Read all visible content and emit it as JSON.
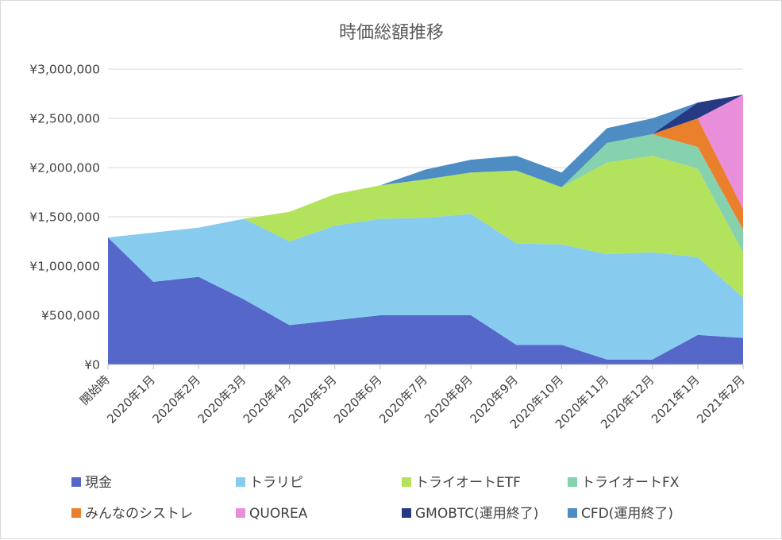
{
  "chart_data": {
    "type": "area",
    "stacked": true,
    "title": "時価総額推移",
    "xlabel": "",
    "ylabel": "",
    "categories": [
      "開始時",
      "2020年1月",
      "2020年2月",
      "2020年3月",
      "2020年4月",
      "2020年5月",
      "2020年6月",
      "2020年7月",
      "2020年8月",
      "2020年9月",
      "2020年10月",
      "2020年11月",
      "2020年12月",
      "2021年1月",
      "2021年2月"
    ],
    "ylim": [
      0,
      3000000
    ],
    "yticks": [
      0,
      500000,
      1000000,
      1500000,
      2000000,
      2500000,
      3000000
    ],
    "ytick_labels": [
      "¥0",
      "¥500,000",
      "¥1,000,000",
      "¥1,500,000",
      "¥2,000,000",
      "¥2,500,000",
      "¥3,000,000"
    ],
    "grid": true,
    "legend_position": "bottom",
    "series": [
      {
        "name": "現金",
        "color": "#5567c8",
        "values": [
          1290000,
          840000,
          890000,
          660000,
          400000,
          450000,
          500000,
          500000,
          500000,
          200000,
          200000,
          50000,
          50000,
          300000,
          270000
        ]
      },
      {
        "name": "トラリピ",
        "color": "#87cbef",
        "values": [
          0,
          500000,
          500000,
          820000,
          850000,
          960000,
          980000,
          990000,
          1030000,
          1030000,
          1020000,
          1070000,
          1090000,
          790000,
          410000
        ]
      },
      {
        "name": "トライオートETF",
        "color": "#b3e35c",
        "values": [
          0,
          0,
          0,
          0,
          300000,
          320000,
          340000,
          390000,
          420000,
          740000,
          580000,
          930000,
          980000,
          900000,
          460000
        ]
      },
      {
        "name": "トライオートFX",
        "color": "#86d1ae",
        "values": [
          0,
          0,
          0,
          0,
          0,
          0,
          0,
          0,
          0,
          0,
          0,
          200000,
          220000,
          220000,
          230000
        ]
      },
      {
        "name": "みんなのシストレ",
        "color": "#ea7f2c",
        "values": [
          0,
          0,
          0,
          0,
          0,
          0,
          0,
          0,
          0,
          0,
          0,
          0,
          0,
          290000,
          210000
        ]
      },
      {
        "name": "QUOREA",
        "color": "#e98edb",
        "values": [
          0,
          0,
          0,
          0,
          0,
          0,
          0,
          0,
          0,
          0,
          0,
          0,
          0,
          0,
          1160000
        ]
      },
      {
        "name": "GMOBTC(運用終了)",
        "color": "#263a84",
        "values": [
          0,
          0,
          0,
          0,
          0,
          0,
          0,
          0,
          0,
          0,
          0,
          0,
          0,
          160000,
          0
        ]
      },
      {
        "name": "CFD(運用終了)",
        "color": "#4d8dc4",
        "values": [
          0,
          0,
          0,
          0,
          0,
          0,
          0,
          100000,
          130000,
          150000,
          150000,
          150000,
          160000,
          0,
          0
        ]
      }
    ]
  },
  "colors": {
    "grid": "#d9d9d9",
    "axis": "#bfbfbf",
    "text": "#404040",
    "title": "#595959"
  }
}
